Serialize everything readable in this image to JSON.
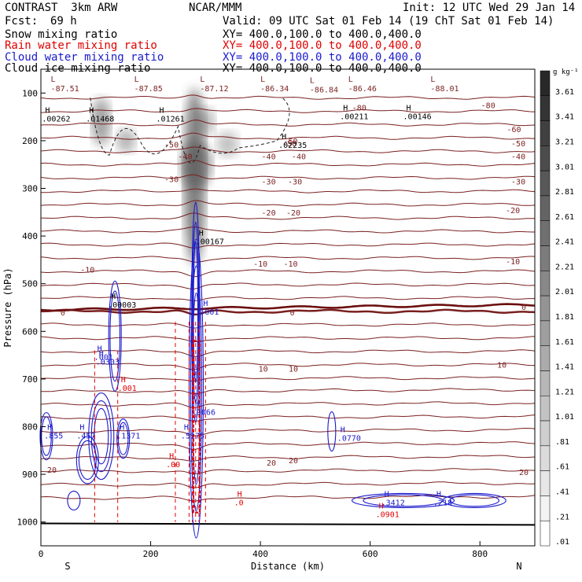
{
  "header": {
    "model": "CONTRAST  3km ARW",
    "org": "NCAR/MMM",
    "init": "Init: 12 UTC Wed 29 Jan 14",
    "fcst_label": "Fcst:",
    "fcst_value": "69 h",
    "valid": "Valid: 09 UTC Sat 01 Feb 14 (19 ChT Sat 01 Feb 14)",
    "fields": [
      {
        "name": "Snow mixing ratio",
        "xy": "XY= 400.0,100.0 to 400.0,400.0",
        "color": "#000000"
      },
      {
        "name": "Rain water mixing ratio",
        "xy": "XY= 400.0,100.0 to 400.0,400.0",
        "color": "#e00000"
      },
      {
        "name": "Cloud water mixing ratio",
        "xy": "XY= 400.0,100.0 to 400.0,400.0",
        "color": "#1a1acd"
      },
      {
        "name": "Cloud ice mixing ratio",
        "xy": "XY= 400.0,100.0 to 400.0,400.0",
        "color": "#000000"
      }
    ]
  },
  "chart_data": {
    "type": "contour-cross-section",
    "xlabel": "Distance (km)",
    "ylabel": "Pressure (hPa)",
    "xlim": [
      0,
      900
    ],
    "ylim": [
      1050,
      50
    ],
    "x_ticks": [
      0,
      200,
      400,
      600,
      800
    ],
    "y_ticks": [
      100,
      200,
      300,
      400,
      500,
      600,
      700,
      800,
      900,
      1000
    ],
    "end_labels": {
      "left": "S",
      "right": "N"
    },
    "colorbar": {
      "unit": "g kg⁻¹",
      "labels": [
        "3.61",
        "3.41",
        "3.21",
        "3.01",
        "2.81",
        "2.61",
        "2.41",
        "2.21",
        "2.01",
        "1.81",
        "1.61",
        "1.41",
        "1.21",
        "1.01",
        ".81",
        ".61",
        ".41",
        ".21",
        ".01"
      ]
    },
    "temperature_labels": [
      {
        "text": "-80",
        "x": 580,
        "p": 130
      },
      {
        "text": "-80",
        "x": 815,
        "p": 125
      },
      {
        "text": "-60",
        "x": 862,
        "p": 175
      },
      {
        "text": "-50",
        "x": 238,
        "p": 208
      },
      {
        "text": "-50",
        "x": 455,
        "p": 200
      },
      {
        "text": "-50",
        "x": 870,
        "p": 205
      },
      {
        "text": "-50",
        "x": 453,
        "p": 205
      },
      {
        "text": "-40",
        "x": 263,
        "p": 232
      },
      {
        "text": "-40",
        "x": 415,
        "p": 232
      },
      {
        "text": "-40",
        "x": 470,
        "p": 232
      },
      {
        "text": "-40",
        "x": 870,
        "p": 232
      },
      {
        "text": "-30",
        "x": 238,
        "p": 280
      },
      {
        "text": "-30",
        "x": 415,
        "p": 285
      },
      {
        "text": "-30",
        "x": 463,
        "p": 285
      },
      {
        "text": "-30",
        "x": 870,
        "p": 285
      },
      {
        "text": "-20",
        "x": 415,
        "p": 350
      },
      {
        "text": "-20",
        "x": 460,
        "p": 350
      },
      {
        "text": "-20",
        "x": 860,
        "p": 345
      },
      {
        "text": "-10",
        "x": 85,
        "p": 470
      },
      {
        "text": "-10",
        "x": 400,
        "p": 458
      },
      {
        "text": "-10",
        "x": 455,
        "p": 458
      },
      {
        "text": "-10",
        "x": 860,
        "p": 453
      },
      {
        "text": "0",
        "x": 40,
        "p": 560
      },
      {
        "text": "0",
        "x": 458,
        "p": 560
      },
      {
        "text": "0",
        "x": 880,
        "p": 548
      },
      {
        "text": "10",
        "x": 405,
        "p": 678
      },
      {
        "text": "10",
        "x": 460,
        "p": 678
      },
      {
        "text": "10",
        "x": 840,
        "p": 670
      },
      {
        "text": "20",
        "x": 20,
        "p": 890
      },
      {
        "text": "20",
        "x": 420,
        "p": 875
      },
      {
        "text": "20",
        "x": 460,
        "p": 870
      },
      {
        "text": "20",
        "x": 880,
        "p": 895
      }
    ],
    "low_labels": [
      {
        "x": 18,
        "p": 80,
        "value": "-87.51"
      },
      {
        "x": 170,
        "p": 80,
        "value": "-87.85"
      },
      {
        "x": 290,
        "p": 80,
        "value": "-87.12"
      },
      {
        "x": 400,
        "p": 80,
        "value": "-86.34"
      },
      {
        "x": 490,
        "p": 82,
        "value": "-86.84"
      },
      {
        "x": 560,
        "p": 80,
        "value": "-86.46"
      },
      {
        "x": 710,
        "p": 80,
        "value": "-88.01"
      }
    ],
    "high_labels": [
      {
        "x": 2,
        "p": 155,
        "value": ".00262",
        "color": "#000000"
      },
      {
        "x": 82,
        "p": 155,
        "value": ".01468",
        "color": "#000000"
      },
      {
        "x": 210,
        "p": 155,
        "value": ".01261",
        "color": "#000000"
      },
      {
        "x": 545,
        "p": 150,
        "value": ".00211",
        "color": "#000000"
      },
      {
        "x": 660,
        "p": 150,
        "value": ".00146",
        "color": "#000000"
      },
      {
        "x": 433,
        "p": 210,
        "value": ".02235",
        "color": "#000000"
      },
      {
        "x": 282,
        "p": 412,
        "value": ".00167",
        "color": "#000000"
      },
      {
        "x": 122,
        "p": 545,
        "value": ".00003",
        "color": "#000000"
      },
      {
        "x": 290,
        "p": 560,
        "value": ".001",
        "color": "#1a1acd"
      },
      {
        "x": 97,
        "p": 655,
        "value": ".001",
        "color": "#1a1acd"
      },
      {
        "x": 100,
        "p": 665,
        "value": ".0303",
        "color": "#1a1acd"
      },
      {
        "x": 6,
        "p": 820,
        "value": ".855",
        "color": "#1a1acd"
      },
      {
        "x": 65,
        "p": 820,
        "value": ".457",
        "color": "#1a1acd"
      },
      {
        "x": 138,
        "p": 820,
        "value": ".1371",
        "color": "#1a1acd"
      },
      {
        "x": 255,
        "p": 820,
        "value": ".5175",
        "color": "#1a1acd"
      },
      {
        "x": 540,
        "p": 825,
        "value": ".0770",
        "color": "#1a1acd"
      },
      {
        "x": 620,
        "p": 960,
        "value": ".3412",
        "color": "#1a1acd"
      },
      {
        "x": 715,
        "p": 960,
        "value": ".218",
        "color": "#1a1acd"
      },
      {
        "x": 610,
        "p": 985,
        "value": ".0901",
        "color": "#e00000"
      },
      {
        "x": 352,
        "p": 960,
        "value": ".0",
        "color": "#e00000"
      },
      {
        "x": 228,
        "p": 880,
        "value": ".00",
        "color": "#e00000"
      },
      {
        "x": 140,
        "p": 720,
        "value": ".001",
        "color": "#e00000"
      },
      {
        "x": 275,
        "p": 770,
        "value": ".9066",
        "color": "#1a1acd"
      }
    ]
  }
}
